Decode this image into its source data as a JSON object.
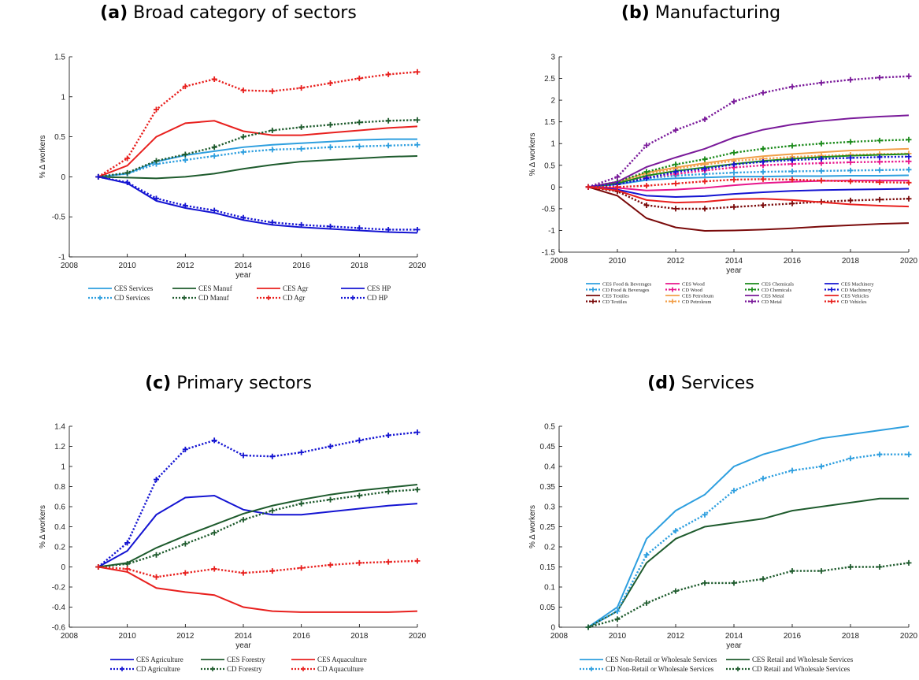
{
  "chart_data": [
    {
      "type": "line",
      "panel_label": "(a)",
      "title": "Broad category of sectors",
      "xlabel": "year",
      "ylabel": "%   Δ   workers",
      "xlim": [
        2008,
        2020
      ],
      "ylim": [
        -1,
        1.5
      ],
      "xticks": [
        2008,
        2010,
        2012,
        2014,
        2016,
        2018,
        2020
      ],
      "yticks": [
        -1,
        -0.5,
        0,
        0.5,
        1,
        1.5
      ],
      "x": [
        2009,
        2010,
        2011,
        2012,
        2013,
        2014,
        2015,
        2016,
        2017,
        2018,
        2019,
        2020
      ],
      "legend_columns": 4,
      "legend_font": 9,
      "series": [
        {
          "name": "CES Services",
          "color": "#2e9fdf",
          "style": "solid",
          "values": [
            0,
            0.04,
            0.19,
            0.27,
            0.32,
            0.37,
            0.4,
            0.42,
            0.44,
            0.46,
            0.47,
            0.47
          ]
        },
        {
          "name": "CES Manuf",
          "color": "#1e5b2d",
          "style": "solid",
          "values": [
            0,
            -0.01,
            -0.02,
            0.0,
            0.04,
            0.1,
            0.15,
            0.19,
            0.21,
            0.23,
            0.25,
            0.26
          ]
        },
        {
          "name": "CES Agr",
          "color": "#e8201e",
          "style": "solid",
          "values": [
            0,
            0.14,
            0.5,
            0.67,
            0.7,
            0.57,
            0.52,
            0.52,
            0.55,
            0.58,
            0.61,
            0.63
          ]
        },
        {
          "name": "CES HP",
          "color": "#1414d2",
          "style": "solid",
          "values": [
            0,
            -0.08,
            -0.3,
            -0.39,
            -0.45,
            -0.54,
            -0.6,
            -0.63,
            -0.65,
            -0.67,
            -0.69,
            -0.7
          ]
        },
        {
          "name": "CD Services",
          "color": "#2e9fdf",
          "style": "dotted",
          "values": [
            0,
            0.04,
            0.16,
            0.21,
            0.26,
            0.31,
            0.34,
            0.35,
            0.37,
            0.38,
            0.39,
            0.4
          ]
        },
        {
          "name": "CD Manuf",
          "color": "#1e5b2d",
          "style": "dotted",
          "values": [
            0,
            0.05,
            0.2,
            0.28,
            0.37,
            0.5,
            0.58,
            0.62,
            0.65,
            0.68,
            0.7,
            0.71
          ]
        },
        {
          "name": "CD Agr",
          "color": "#e8201e",
          "style": "dotted",
          "values": [
            0,
            0.23,
            0.84,
            1.13,
            1.22,
            1.08,
            1.07,
            1.11,
            1.17,
            1.23,
            1.28,
            1.31
          ]
        },
        {
          "name": "CD HP",
          "color": "#1414d2",
          "style": "dotted",
          "values": [
            0,
            -0.07,
            -0.27,
            -0.36,
            -0.42,
            -0.51,
            -0.57,
            -0.6,
            -0.62,
            -0.64,
            -0.66,
            -0.66
          ]
        }
      ]
    },
    {
      "type": "line",
      "panel_label": "(b)",
      "title": "Manufacturing",
      "xlabel": "year",
      "ylabel": "%   Δ   workers",
      "xlim": [
        2008,
        2020
      ],
      "ylim": [
        -1.5,
        3
      ],
      "xticks": [
        2008,
        2010,
        2012,
        2014,
        2016,
        2018,
        2020
      ],
      "yticks": [
        -1.5,
        -1,
        -0.5,
        0,
        0.5,
        1,
        1.5,
        2,
        2.5,
        3
      ],
      "x": [
        2009,
        2010,
        2011,
        2012,
        2013,
        2014,
        2015,
        2016,
        2017,
        2018,
        2019,
        2020
      ],
      "legend_columns": 4,
      "legend_font": 6.5,
      "series": [
        {
          "name": "CES Food & Beverages",
          "color": "#2e9fdf",
          "style": "solid",
          "values": [
            0,
            0.06,
            0.16,
            0.2,
            0.22,
            0.24,
            0.24,
            0.25,
            0.25,
            0.26,
            0.26,
            0.27
          ]
        },
        {
          "name": "CD Food & Beverages",
          "color": "#2e9fdf",
          "style": "dotted",
          "values": [
            0,
            0.08,
            0.2,
            0.26,
            0.3,
            0.33,
            0.35,
            0.36,
            0.37,
            0.38,
            0.39,
            0.4
          ]
        },
        {
          "name": "CES Textiles",
          "color": "#7a0a0a",
          "style": "solid",
          "values": [
            0,
            -0.2,
            -0.72,
            -0.93,
            -1.01,
            -1.0,
            -0.98,
            -0.95,
            -0.91,
            -0.88,
            -0.85,
            -0.83
          ]
        },
        {
          "name": "CD Textiles",
          "color": "#7a0a0a",
          "style": "dotted",
          "values": [
            0,
            -0.1,
            -0.42,
            -0.5,
            -0.5,
            -0.46,
            -0.42,
            -0.38,
            -0.34,
            -0.31,
            -0.29,
            -0.27
          ]
        },
        {
          "name": "CES Wood",
          "color": "#e8168c",
          "style": "solid",
          "values": [
            0,
            -0.02,
            -0.08,
            -0.06,
            -0.02,
            0.04,
            0.09,
            0.12,
            0.14,
            0.15,
            0.15,
            0.15
          ]
        },
        {
          "name": "CD Wood",
          "color": "#e8168c",
          "style": "dotted",
          "values": [
            0,
            0.06,
            0.22,
            0.3,
            0.38,
            0.45,
            0.5,
            0.53,
            0.55,
            0.57,
            0.58,
            0.59
          ]
        },
        {
          "name": "CES Petroleum",
          "color": "#f2a04a",
          "style": "solid",
          "values": [
            0,
            0.1,
            0.33,
            0.45,
            0.55,
            0.64,
            0.71,
            0.76,
            0.8,
            0.84,
            0.86,
            0.88
          ]
        },
        {
          "name": "CD Petroleum",
          "color": "#f2a04a",
          "style": "dotted",
          "values": [
            0,
            0.1,
            0.3,
            0.42,
            0.52,
            0.6,
            0.65,
            0.69,
            0.72,
            0.74,
            0.76,
            0.77
          ]
        },
        {
          "name": "CES Chemicals",
          "color": "#1a8a1a",
          "style": "solid",
          "values": [
            0,
            0.08,
            0.26,
            0.37,
            0.45,
            0.53,
            0.6,
            0.65,
            0.69,
            0.72,
            0.74,
            0.76
          ]
        },
        {
          "name": "CD Chemicals",
          "color": "#1a8a1a",
          "style": "dotted",
          "values": [
            0,
            0.12,
            0.35,
            0.52,
            0.64,
            0.79,
            0.88,
            0.95,
            1.0,
            1.04,
            1.07,
            1.09
          ]
        },
        {
          "name": "CES Metal",
          "color": "#7a1a9a",
          "style": "solid",
          "values": [
            0,
            0.12,
            0.46,
            0.68,
            0.88,
            1.14,
            1.32,
            1.44,
            1.52,
            1.58,
            1.62,
            1.65
          ]
        },
        {
          "name": "CD Metal",
          "color": "#7a1a9a",
          "style": "dotted",
          "values": [
            0,
            0.23,
            0.96,
            1.31,
            1.56,
            1.97,
            2.17,
            2.31,
            2.4,
            2.47,
            2.52,
            2.55
          ]
        },
        {
          "name": "CES Machinery",
          "color": "#1414d2",
          "style": "solid",
          "values": [
            0,
            -0.06,
            -0.2,
            -0.23,
            -0.21,
            -0.16,
            -0.12,
            -0.09,
            -0.07,
            -0.06,
            -0.05,
            -0.04
          ]
        },
        {
          "name": "CD Machinery",
          "color": "#1414d2",
          "style": "dotted",
          "values": [
            0,
            0.06,
            0.2,
            0.35,
            0.42,
            0.52,
            0.58,
            0.62,
            0.65,
            0.67,
            0.69,
            0.7
          ]
        },
        {
          "name": "CES Vehicles",
          "color": "#e8201e",
          "style": "solid",
          "values": [
            0,
            -0.08,
            -0.3,
            -0.36,
            -0.34,
            -0.28,
            -0.27,
            -0.3,
            -0.35,
            -0.4,
            -0.43,
            -0.45
          ]
        },
        {
          "name": "CD Vehicles",
          "color": "#e8201e",
          "style": "dotted",
          "values": [
            0,
            0.0,
            0.03,
            0.08,
            0.13,
            0.17,
            0.18,
            0.17,
            0.15,
            0.13,
            0.11,
            0.1
          ]
        }
      ]
    },
    {
      "type": "line",
      "panel_label": "(c)",
      "title": "Primary sectors",
      "xlabel": "year",
      "ylabel": "%   Δ   workers",
      "xlim": [
        2008,
        2020
      ],
      "ylim": [
        -0.6,
        1.4
      ],
      "xticks": [
        2008,
        2010,
        2012,
        2014,
        2016,
        2018,
        2020
      ],
      "yticks": [
        -0.6,
        -0.4,
        -0.2,
        0,
        0.2,
        0.4,
        0.6,
        0.8,
        1,
        1.2,
        1.4
      ],
      "x": [
        2009,
        2010,
        2011,
        2012,
        2013,
        2014,
        2015,
        2016,
        2017,
        2018,
        2019,
        2020
      ],
      "legend_columns": 3,
      "legend_font": 9,
      "series": [
        {
          "name": "CES Agriculture",
          "color": "#1414d2",
          "style": "solid",
          "values": [
            0,
            0.16,
            0.52,
            0.69,
            0.71,
            0.57,
            0.52,
            0.52,
            0.55,
            0.58,
            0.61,
            0.63
          ]
        },
        {
          "name": "CES Forestry",
          "color": "#1e5b2d",
          "style": "solid",
          "values": [
            0,
            0.04,
            0.19,
            0.31,
            0.42,
            0.53,
            0.61,
            0.67,
            0.72,
            0.76,
            0.79,
            0.82
          ]
        },
        {
          "name": "CES Aquaculture",
          "color": "#e8201e",
          "style": "solid",
          "values": [
            0,
            -0.05,
            -0.21,
            -0.25,
            -0.28,
            -0.4,
            -0.44,
            -0.45,
            -0.45,
            -0.45,
            -0.45,
            -0.44
          ]
        },
        {
          "name": "CD Agriculture",
          "color": "#1414d2",
          "style": "dotted",
          "values": [
            0,
            0.24,
            0.87,
            1.17,
            1.26,
            1.11,
            1.1,
            1.14,
            1.2,
            1.26,
            1.31,
            1.34
          ]
        },
        {
          "name": "CD Forestry",
          "color": "#1e5b2d",
          "style": "dotted",
          "values": [
            0,
            0.03,
            0.12,
            0.23,
            0.34,
            0.47,
            0.56,
            0.63,
            0.67,
            0.71,
            0.75,
            0.77
          ]
        },
        {
          "name": "CD Aquaculture",
          "color": "#e8201e",
          "style": "dotted",
          "values": [
            0,
            -0.02,
            -0.1,
            -0.06,
            -0.02,
            -0.06,
            -0.04,
            -0.01,
            0.02,
            0.04,
            0.05,
            0.06
          ]
        }
      ]
    },
    {
      "type": "line",
      "panel_label": "(d)",
      "title": "Services",
      "xlabel": "year",
      "ylabel": "%   Δ   workers",
      "xlim": [
        2008,
        2020
      ],
      "ylim": [
        0,
        0.5
      ],
      "xticks": [
        2008,
        2010,
        2012,
        2014,
        2016,
        2018,
        2020
      ],
      "yticks": [
        0,
        0.05,
        0.1,
        0.15,
        0.2,
        0.25,
        0.3,
        0.35,
        0.4,
        0.45,
        0.5
      ],
      "x": [
        2009,
        2010,
        2011,
        2012,
        2013,
        2014,
        2015,
        2016,
        2017,
        2018,
        2019,
        2020
      ],
      "legend_columns": 2,
      "legend_font": 9,
      "series": [
        {
          "name": "CES Non-Retail or Wholesale Services",
          "color": "#2e9fdf",
          "style": "solid",
          "values": [
            0,
            0.05,
            0.22,
            0.29,
            0.33,
            0.4,
            0.43,
            0.45,
            0.47,
            0.48,
            0.49,
            0.5
          ]
        },
        {
          "name": "CES Retail and Wholesale Services",
          "color": "#1e5b2d",
          "style": "solid",
          "values": [
            0,
            0.04,
            0.16,
            0.22,
            0.25,
            0.26,
            0.27,
            0.29,
            0.3,
            0.31,
            0.32,
            0.32
          ]
        },
        {
          "name": "CD Non-Retail or Wholesale Services",
          "color": "#2e9fdf",
          "style": "dotted",
          "values": [
            0,
            0.04,
            0.18,
            0.24,
            0.28,
            0.34,
            0.37,
            0.39,
            0.4,
            0.42,
            0.43,
            0.43
          ]
        },
        {
          "name": "CD Retail and Wholesale Services",
          "color": "#1e5b2d",
          "style": "dotted",
          "values": [
            0,
            0.02,
            0.06,
            0.09,
            0.11,
            0.11,
            0.12,
            0.14,
            0.14,
            0.15,
            0.15,
            0.16
          ]
        }
      ]
    }
  ]
}
